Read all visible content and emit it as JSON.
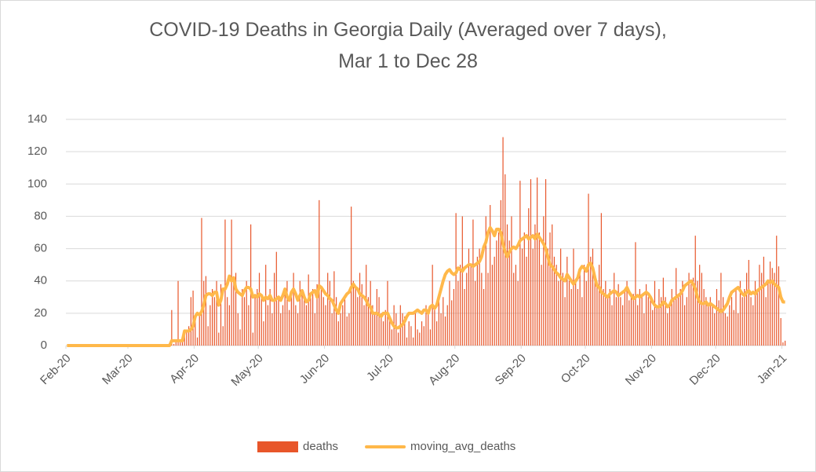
{
  "chart_data": {
    "type": "bar",
    "title": "COVID-19 Deaths in Georgia Daily (Averaged over 7 days), Mar 1 to Dec 28",
    "ylim": [
      0,
      140
    ],
    "yticks": [
      0,
      20,
      40,
      60,
      80,
      100,
      120,
      140
    ],
    "grid": true,
    "xlim": [
      0,
      337
    ],
    "xticks": [
      {
        "value": 0,
        "label": "Feb-20"
      },
      {
        "value": 29,
        "label": "Mar-20"
      },
      {
        "value": 60,
        "label": "Apr-20"
      },
      {
        "value": 90,
        "label": "May-20"
      },
      {
        "value": 121,
        "label": "Jun-20"
      },
      {
        "value": 151,
        "label": "Jul-20"
      },
      {
        "value": 182,
        "label": "Aug-20"
      },
      {
        "value": 213,
        "label": "Sep-20"
      },
      {
        "value": 243,
        "label": "Oct-20"
      },
      {
        "value": 274,
        "label": "Nov-20"
      },
      {
        "value": 304,
        "label": "Dec-20"
      },
      {
        "value": 335,
        "label": "Jan-21"
      }
    ],
    "legend": "bottom",
    "series": [
      {
        "name": "deaths",
        "type": "bar",
        "color": "#e8562a",
        "values": [
          0,
          0,
          0,
          0,
          0,
          0,
          0,
          0,
          0,
          0,
          0,
          0,
          0,
          0,
          0,
          0,
          0,
          0,
          0,
          0,
          0,
          0,
          0,
          0,
          0,
          0,
          0,
          0,
          0,
          0,
          0,
          0,
          0,
          0,
          0,
          0,
          0,
          0,
          0,
          0,
          0,
          0,
          0,
          0,
          0,
          0,
          0,
          0,
          0,
          22,
          1,
          3,
          40,
          2,
          5,
          10,
          8,
          12,
          30,
          34,
          15,
          5,
          20,
          79,
          40,
          43,
          12,
          25,
          35,
          30,
          40,
          8,
          38,
          12,
          78,
          30,
          25,
          78,
          40,
          45,
          20,
          10,
          35,
          30,
          40,
          25,
          75,
          8,
          30,
          35,
          45,
          30,
          15,
          50,
          25,
          35,
          20,
          45,
          58,
          30,
          20,
          25,
          35,
          40,
          22,
          30,
          45,
          25,
          20,
          40,
          35,
          30,
          25,
          44,
          30,
          35,
          20,
          38,
          90,
          35,
          30,
          25,
          45,
          40,
          20,
          46,
          30,
          15,
          20,
          25,
          30,
          18,
          20,
          86,
          40,
          35,
          30,
          45,
          38,
          25,
          50,
          30,
          40,
          25,
          20,
          35,
          30,
          20,
          15,
          22,
          40,
          18,
          10,
          25,
          20,
          8,
          25,
          20,
          18,
          5,
          15,
          12,
          5,
          20,
          10,
          8,
          15,
          12,
          25,
          20,
          10,
          50,
          22,
          15,
          30,
          20,
          30,
          18,
          25,
          40,
          28,
          35,
          82,
          40,
          50,
          80,
          35,
          45,
          60,
          50,
          78,
          40,
          55,
          60,
          45,
          35,
          80,
          45,
          87,
          50,
          55,
          65,
          70,
          90,
          129,
          106,
          75,
          65,
          80,
          45,
          50,
          40,
          102,
          60,
          70,
          55,
          85,
          103,
          60,
          75,
          104,
          70,
          50,
          80,
          103,
          60,
          70,
          75,
          55,
          50,
          40,
          60,
          45,
          30,
          55,
          40,
          35,
          60,
          40,
          35,
          45,
          30,
          50,
          40,
          94,
          55,
          60,
          45,
          40,
          50,
          82,
          35,
          40,
          30,
          35,
          25,
          45,
          30,
          38,
          30,
          25,
          35,
          40,
          28,
          30,
          32,
          64,
          25,
          35,
          30,
          20,
          38,
          30,
          28,
          22,
          40,
          25,
          35,
          30,
          42,
          30,
          20,
          25,
          35,
          28,
          48,
          30,
          35,
          40,
          25,
          30,
          45,
          38,
          42,
          68,
          40,
          50,
          45,
          35,
          30,
          25,
          30,
          25,
          20,
          35,
          28,
          45,
          30,
          20,
          18,
          25,
          30,
          22,
          35,
          20,
          40,
          30,
          35,
          45,
          53,
          30,
          25,
          40,
          35,
          50,
          45,
          55,
          30,
          40,
          52,
          48,
          45,
          68,
          49,
          17,
          2,
          3
        ]
      },
      {
        "name": "moving_avg_deaths",
        "type": "line",
        "color": "#ffb84a",
        "values": [
          0,
          0,
          0,
          0,
          0,
          0,
          0,
          0,
          0,
          0,
          0,
          0,
          0,
          0,
          0,
          0,
          0,
          0,
          0,
          0,
          0,
          0,
          0,
          0,
          0,
          0,
          0,
          0,
          0,
          0,
          0,
          0,
          0,
          0,
          0,
          0,
          0,
          0,
          0,
          0,
          0,
          0,
          0,
          0,
          0,
          0,
          0,
          0,
          0,
          3,
          3,
          3,
          3,
          3,
          3,
          9,
          9,
          9,
          10,
          12,
          18,
          20,
          19,
          21,
          25,
          31,
          32,
          32,
          31,
          33,
          33,
          25,
          28,
          35,
          35,
          38,
          43,
          40,
          42,
          35,
          33,
          32,
          31,
          34,
          36,
          36,
          35,
          30,
          31,
          30,
          32,
          31,
          28,
          30,
          29,
          31,
          28,
          28,
          29,
          30,
          28,
          31,
          35,
          30,
          28,
          33,
          35,
          32,
          28,
          31,
          34,
          30,
          27,
          28,
          32,
          33,
          34,
          30,
          37,
          36,
          34,
          32,
          31,
          29,
          28,
          25,
          22,
          20,
          26,
          28,
          30,
          32,
          33,
          36,
          38,
          36,
          35,
          32,
          31,
          30,
          28,
          25,
          24,
          20,
          20,
          20,
          19,
          18,
          20,
          20,
          20,
          17,
          14,
          12,
          11,
          11,
          12,
          13,
          15,
          18,
          20,
          20,
          20,
          21,
          22,
          21,
          20,
          22,
          22,
          20,
          24,
          25,
          23,
          25,
          30,
          35,
          40,
          44,
          46,
          47,
          45,
          44,
          45,
          48,
          47,
          46,
          48,
          49,
          50,
          50,
          49,
          50,
          51,
          52,
          55,
          61,
          64,
          70,
          73,
          71,
          68,
          72,
          72,
          70,
          63,
          58,
          55,
          58,
          60,
          61,
          60,
          62,
          65,
          66,
          67,
          68,
          66,
          67,
          68,
          66,
          69,
          67,
          65,
          63,
          60,
          55,
          50,
          49,
          47,
          45,
          44,
          42,
          41,
          40,
          44,
          42,
          40,
          38,
          40,
          42,
          47,
          49,
          48,
          46,
          50,
          51,
          48,
          42,
          37,
          36,
          33,
          32,
          31,
          30,
          32,
          33,
          34,
          33,
          31,
          32,
          33,
          34,
          36,
          33,
          31,
          29,
          30,
          31,
          30,
          31,
          32,
          33,
          32,
          30,
          27,
          25,
          24,
          24,
          25,
          27,
          26,
          24,
          25,
          28,
          29,
          30,
          31,
          32,
          34,
          37,
          38,
          39,
          40,
          38,
          35,
          30,
          27,
          26,
          26,
          27,
          25,
          26,
          25,
          24,
          23,
          22,
          21,
          22,
          24,
          26,
          30,
          33,
          34,
          35,
          36,
          34,
          32,
          31,
          33,
          34,
          32,
          33,
          32,
          34,
          35,
          36,
          37,
          38,
          40,
          39,
          40,
          38,
          37,
          36,
          30,
          27,
          27
        ]
      }
    ]
  }
}
